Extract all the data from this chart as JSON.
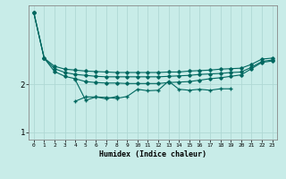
{
  "xlabel": "Humidex (Indice chaleur)",
  "x_values": [
    0,
    1,
    2,
    3,
    4,
    5,
    6,
    7,
    8,
    9,
    10,
    11,
    12,
    13,
    14,
    15,
    16,
    17,
    18,
    19,
    20,
    21,
    22,
    23
  ],
  "line1": [
    3.5,
    2.55,
    2.38,
    2.32,
    2.3,
    2.28,
    2.27,
    2.26,
    2.25,
    2.25,
    2.25,
    2.25,
    2.25,
    2.26,
    2.26,
    2.28,
    2.29,
    2.3,
    2.32,
    2.33,
    2.34,
    2.42,
    2.53,
    2.55
  ],
  "line2": [
    3.5,
    2.55,
    2.33,
    2.25,
    2.21,
    2.19,
    2.17,
    2.16,
    2.16,
    2.16,
    2.16,
    2.16,
    2.16,
    2.17,
    2.18,
    2.19,
    2.21,
    2.22,
    2.23,
    2.25,
    2.26,
    2.36,
    2.48,
    2.51
  ],
  "line3": [
    3.5,
    2.55,
    2.27,
    2.17,
    2.12,
    2.06,
    2.04,
    2.03,
    2.03,
    2.02,
    2.02,
    2.02,
    2.02,
    2.04,
    2.05,
    2.06,
    2.09,
    2.12,
    2.14,
    2.17,
    2.2,
    2.33,
    2.46,
    2.49
  ],
  "line4": [
    null,
    null,
    null,
    null,
    2.1,
    1.67,
    1.74,
    1.73,
    1.71,
    1.75,
    1.9,
    1.87,
    1.88,
    2.07,
    1.9,
    1.88,
    1.9,
    1.88,
    1.91,
    1.91,
    null,
    null,
    null,
    null
  ],
  "line5": [
    null,
    null,
    null,
    null,
    1.65,
    1.74,
    1.74,
    1.7,
    1.75,
    null,
    null,
    null,
    null,
    null,
    null,
    null,
    null,
    null,
    null,
    null,
    null,
    null,
    null,
    null
  ],
  "bg_color": "#c8ece8",
  "grid_color": "#b0d8d4",
  "line_color": "#006860",
  "ylim": [
    0.85,
    3.65
  ],
  "yticks": [
    1,
    2
  ],
  "xlim": [
    -0.5,
    23.5
  ]
}
